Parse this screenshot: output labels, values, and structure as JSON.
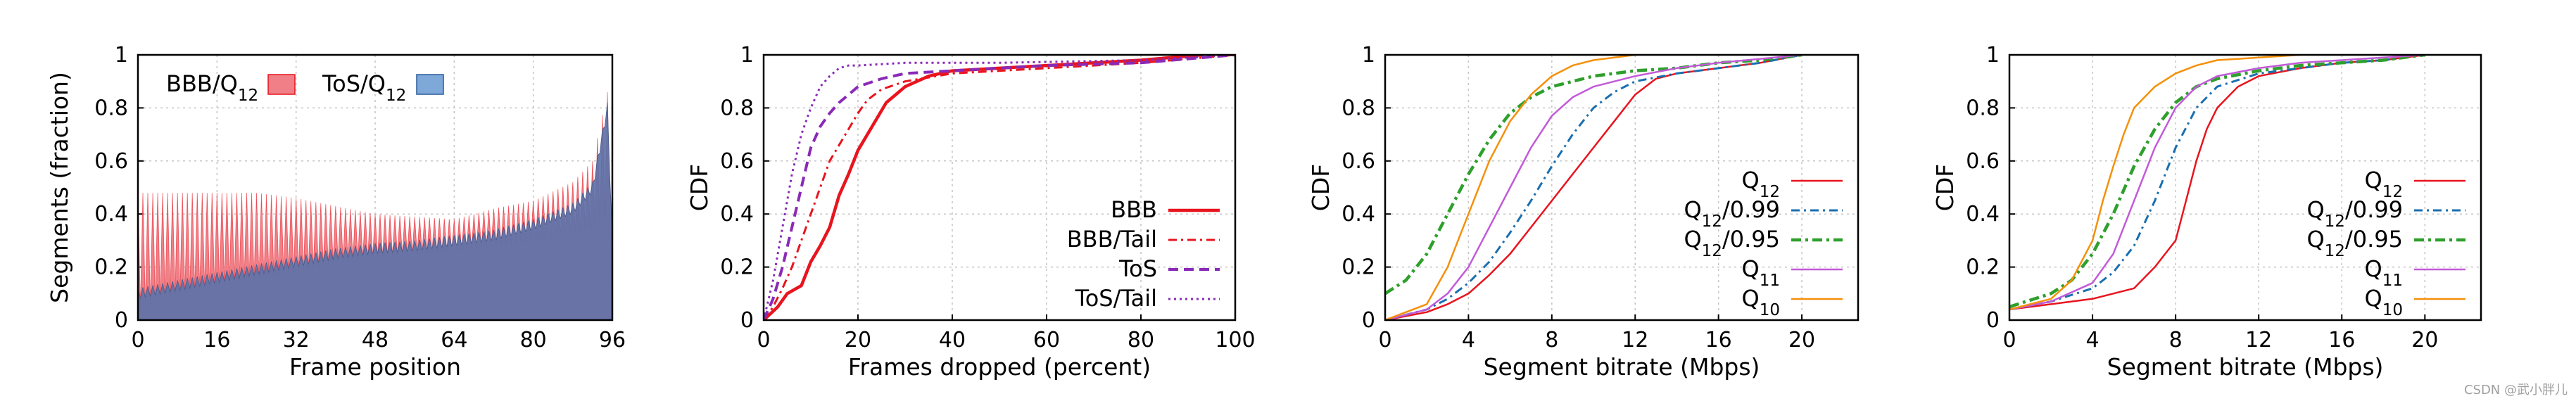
{
  "colors": {
    "bbb": "#e8141e",
    "bbb_fill": "#f07f87",
    "tos": "#8a2ab8",
    "tos_fill": "#5d72a8",
    "q12": "#e8141e",
    "q12_099": "#1a6fb0",
    "q12_095": "#2ea02c",
    "q11": "#c25ad8",
    "q10": "#f5900a"
  },
  "watermark": "CSDN @武小胖儿",
  "chart_data": [
    {
      "type": "area",
      "xlabel": "Frame position",
      "ylabel": "Segments (fraction)",
      "xlim": [
        0,
        96
      ],
      "ylim": [
        0,
        1
      ],
      "xticks": [
        "0",
        "16",
        "32",
        "48",
        "64",
        "80",
        "96"
      ],
      "yticks": [
        "0",
        "0.2",
        "0.4",
        "0.6",
        "0.8",
        "1"
      ],
      "grid": true,
      "legend_position": "top-left",
      "series": [
        {
          "name": "BBB/Q",
          "name_sub": "12",
          "style": "filled-red",
          "x": [
            0,
            8,
            16,
            24,
            32,
            40,
            48,
            56,
            64,
            72,
            80,
            88,
            92,
            95,
            96
          ],
          "peaks": [
            0.48,
            0.48,
            0.48,
            0.48,
            0.46,
            0.43,
            0.4,
            0.39,
            0.38,
            0.42,
            0.45,
            0.52,
            0.6,
            0.86,
            0.3
          ],
          "troughs": [
            0.05,
            0.1,
            0.13,
            0.16,
            0.18,
            0.22,
            0.24,
            0.25,
            0.26,
            0.28,
            0.3,
            0.33,
            0.36,
            0.4,
            0.3
          ]
        },
        {
          "name": "ToS/Q",
          "name_sub": "12",
          "style": "filled-blue",
          "x": [
            0,
            8,
            16,
            24,
            32,
            40,
            48,
            56,
            64,
            72,
            80,
            88,
            92,
            95,
            96
          ],
          "values": [
            0.1,
            0.13,
            0.16,
            0.19,
            0.22,
            0.25,
            0.27,
            0.28,
            0.3,
            0.32,
            0.36,
            0.42,
            0.5,
            0.8,
            0.3
          ]
        }
      ]
    },
    {
      "type": "line",
      "xlabel": "Frames dropped (percent)",
      "ylabel": "CDF",
      "xlim": [
        0,
        100
      ],
      "ylim": [
        0,
        1
      ],
      "xticks": [
        "0",
        "20",
        "40",
        "60",
        "80",
        "100"
      ],
      "yticks": [
        "0",
        "0.2",
        "0.4",
        "0.6",
        "0.8",
        "1"
      ],
      "grid": true,
      "legend_position": "bottom-right",
      "series": [
        {
          "name": "BBB",
          "style": "solid-thick-red",
          "x": [
            0,
            3,
            5,
            8,
            10,
            12,
            14,
            16,
            18,
            20,
            22,
            24,
            26,
            28,
            30,
            35,
            40,
            50,
            60,
            80,
            93
          ],
          "y": [
            0,
            0.05,
            0.1,
            0.13,
            0.22,
            0.28,
            0.35,
            0.47,
            0.55,
            0.64,
            0.7,
            0.76,
            0.82,
            0.85,
            0.88,
            0.92,
            0.94,
            0.95,
            0.96,
            0.98,
            1.0
          ]
        },
        {
          "name": "BBB/Tail",
          "style": "dashdot-red",
          "x": [
            0,
            2,
            4,
            6,
            8,
            10,
            12,
            14,
            16,
            18,
            20,
            22,
            25,
            30,
            40,
            60,
            80,
            100
          ],
          "y": [
            0,
            0.05,
            0.12,
            0.2,
            0.3,
            0.4,
            0.5,
            0.6,
            0.66,
            0.72,
            0.78,
            0.83,
            0.87,
            0.9,
            0.93,
            0.95,
            0.97,
            1.0
          ]
        },
        {
          "name": "ToS",
          "style": "dashed-purple",
          "x": [
            0,
            2,
            4,
            6,
            8,
            10,
            12,
            14,
            16,
            18,
            20,
            25,
            30,
            40,
            60,
            80,
            100
          ],
          "y": [
            0,
            0.08,
            0.2,
            0.35,
            0.5,
            0.65,
            0.73,
            0.78,
            0.82,
            0.85,
            0.88,
            0.91,
            0.93,
            0.94,
            0.96,
            0.97,
            1.0
          ]
        },
        {
          "name": "ToS/Tail",
          "style": "dotted-purple",
          "x": [
            0,
            2,
            4,
            6,
            8,
            10,
            12,
            14,
            16,
            18,
            20,
            30,
            50,
            80,
            100
          ],
          "y": [
            0,
            0.15,
            0.35,
            0.55,
            0.7,
            0.8,
            0.88,
            0.92,
            0.95,
            0.96,
            0.96,
            0.97,
            0.97,
            0.98,
            1.0
          ]
        }
      ]
    },
    {
      "type": "line",
      "xlabel": "Segment bitrate (Mbps)",
      "ylabel": "CDF",
      "xlim": [
        0,
        22.7
      ],
      "ylim": [
        0,
        1
      ],
      "xticks": [
        "0",
        "4",
        "8",
        "12",
        "16",
        "20"
      ],
      "yticks": [
        "0",
        "0.2",
        "0.4",
        "0.6",
        "0.8",
        "1"
      ],
      "grid": true,
      "legend_position": "bottom-right",
      "series": [
        {
          "name": "Q",
          "name_sub": "12",
          "style": "solid-red",
          "x": [
            0,
            2,
            3,
            4,
            5,
            6,
            7,
            8,
            9,
            10,
            11,
            12,
            13,
            14,
            16,
            18,
            20
          ],
          "y": [
            0,
            0.03,
            0.06,
            0.1,
            0.17,
            0.25,
            0.35,
            0.45,
            0.55,
            0.65,
            0.75,
            0.85,
            0.91,
            0.93,
            0.95,
            0.97,
            1.0
          ]
        },
        {
          "name": "Q",
          "name_sub": "12",
          "name_suffix": "/0.99",
          "style": "dashdot-blue",
          "x": [
            0,
            2,
            3,
            4,
            5,
            6,
            7,
            8,
            9,
            10,
            11,
            12,
            14,
            16,
            18,
            20
          ],
          "y": [
            0,
            0.04,
            0.08,
            0.14,
            0.22,
            0.33,
            0.45,
            0.58,
            0.7,
            0.8,
            0.86,
            0.9,
            0.93,
            0.95,
            0.97,
            1.0
          ]
        },
        {
          "name": "Q",
          "name_sub": "12",
          "name_suffix": "/0.95",
          "style": "dashdot-green",
          "x": [
            0,
            1,
            2,
            3,
            4,
            5,
            6,
            7,
            8,
            9,
            10,
            12,
            14,
            16,
            18,
            20
          ],
          "y": [
            0.1,
            0.15,
            0.25,
            0.4,
            0.55,
            0.68,
            0.78,
            0.84,
            0.88,
            0.9,
            0.92,
            0.94,
            0.95,
            0.97,
            0.98,
            1.0
          ]
        },
        {
          "name": "Q",
          "name_sub": "11",
          "style": "solid-purple",
          "x": [
            0,
            2,
            3,
            4,
            5,
            6,
            7,
            8,
            9,
            10,
            12,
            14,
            16,
            20
          ],
          "y": [
            0,
            0.04,
            0.1,
            0.2,
            0.35,
            0.5,
            0.65,
            0.77,
            0.84,
            0.88,
            0.92,
            0.95,
            0.97,
            1.0
          ]
        },
        {
          "name": "Q",
          "name_sub": "10",
          "style": "solid-orange",
          "x": [
            0,
            2,
            3,
            4,
            5,
            6,
            7,
            8,
            9,
            10,
            11,
            12
          ],
          "y": [
            0,
            0.06,
            0.2,
            0.4,
            0.6,
            0.75,
            0.85,
            0.92,
            0.96,
            0.98,
            0.99,
            1.0
          ]
        }
      ]
    },
    {
      "type": "line",
      "xlabel": "Segment bitrate (Mbps)",
      "ylabel": "CDF",
      "xlim": [
        0,
        22.7
      ],
      "ylim": [
        0,
        1
      ],
      "xticks": [
        "0",
        "4",
        "8",
        "12",
        "16",
        "20"
      ],
      "yticks": [
        "0",
        "0.2",
        "0.4",
        "0.6",
        "0.8",
        "1"
      ],
      "grid": true,
      "legend_position": "bottom-right",
      "series": [
        {
          "name": "Q",
          "name_sub": "12",
          "style": "solid-red",
          "x": [
            0,
            2,
            4,
            6,
            7,
            8,
            8.5,
            9,
            9.5,
            10,
            11,
            12,
            14,
            16,
            18,
            20
          ],
          "y": [
            0.04,
            0.06,
            0.08,
            0.12,
            0.2,
            0.3,
            0.45,
            0.6,
            0.72,
            0.8,
            0.88,
            0.92,
            0.95,
            0.97,
            0.98,
            1.0
          ]
        },
        {
          "name": "Q",
          "name_sub": "12",
          "name_suffix": "/0.99",
          "style": "dashdot-blue",
          "x": [
            0,
            2,
            4,
            5,
            6,
            7,
            8,
            9,
            10,
            12,
            14,
            16,
            18,
            20
          ],
          "y": [
            0.04,
            0.07,
            0.12,
            0.18,
            0.28,
            0.45,
            0.65,
            0.8,
            0.88,
            0.93,
            0.95,
            0.97,
            0.98,
            1.0
          ]
        },
        {
          "name": "Q",
          "name_sub": "12",
          "name_suffix": "/0.95",
          "style": "dashdot-green",
          "x": [
            0,
            2,
            3,
            4,
            5,
            6,
            7,
            8,
            9,
            10,
            12,
            14,
            16,
            18,
            20
          ],
          "y": [
            0.05,
            0.1,
            0.15,
            0.25,
            0.4,
            0.58,
            0.72,
            0.82,
            0.88,
            0.91,
            0.94,
            0.96,
            0.97,
            0.98,
            1.0
          ]
        },
        {
          "name": "Q",
          "name_sub": "11",
          "style": "solid-purple",
          "x": [
            0,
            2,
            4,
            5,
            6,
            7,
            8,
            9,
            10,
            12,
            14,
            16,
            20
          ],
          "y": [
            0.04,
            0.07,
            0.14,
            0.25,
            0.45,
            0.65,
            0.8,
            0.88,
            0.92,
            0.95,
            0.97,
            0.98,
            1.0
          ]
        },
        {
          "name": "Q",
          "name_sub": "10",
          "style": "solid-orange",
          "x": [
            0,
            2,
            3,
            4,
            4.5,
            5,
            5.5,
            6,
            7,
            8,
            9,
            10,
            12,
            14
          ],
          "y": [
            0.04,
            0.08,
            0.15,
            0.3,
            0.45,
            0.58,
            0.7,
            0.8,
            0.88,
            0.93,
            0.96,
            0.98,
            0.99,
            1.0
          ]
        }
      ]
    }
  ]
}
